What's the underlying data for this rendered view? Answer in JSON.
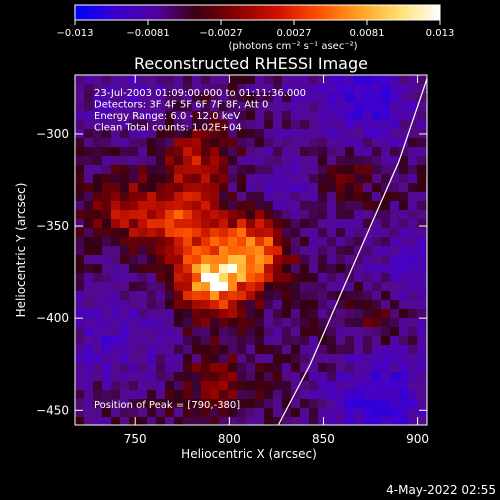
{
  "colorbar": {
    "ticks": [
      "−0.013",
      "−0.0081",
      "−0.0027",
      "0.0027",
      "0.0081",
      "0.013"
    ],
    "units_label": "(photons cm⁻² s⁻¹ asec⁻²)",
    "gradient": [
      "#0000ff",
      "#3a00d0",
      "#5000a0",
      "#3c0010",
      "#8a0000",
      "#d01000",
      "#ff5000",
      "#ffa020",
      "#ffe070",
      "#ffffff"
    ]
  },
  "chart_data": {
    "type": "heatmap",
    "title": "Reconstructed RHESSI Image",
    "xlabel": "Heliocentric X (arcsec)",
    "ylabel": "Heliocentric Y (arcsec)",
    "xlim": [
      718,
      905
    ],
    "ylim": [
      -458,
      -268
    ],
    "xticks": [
      750,
      800,
      850,
      900
    ],
    "xtick_labels": [
      "750",
      "800",
      "850",
      "900"
    ],
    "yticks": [
      -300,
      -350,
      -400,
      -450
    ],
    "ytick_labels": [
      "−300",
      "−350",
      "−400",
      "−450"
    ],
    "zlim": [
      -0.013,
      0.013
    ],
    "sources": [
      {
        "x": 790,
        "y": -380,
        "value": 0.013
      },
      {
        "x": 813,
        "y": -362,
        "value": 0.0115
      },
      {
        "x": 775,
        "y": -347,
        "value": 0.0075
      },
      {
        "x": 783,
        "y": -315,
        "value": 0.006
      },
      {
        "x": 745,
        "y": -342,
        "value": 0.0055
      },
      {
        "x": 792,
        "y": -437,
        "value": 0.004
      },
      {
        "x": 860,
        "y": -320,
        "value": 0.004
      },
      {
        "x": 880,
        "y": -400,
        "value": 0.0035
      }
    ],
    "negative_regions": [
      {
        "x": 870,
        "y": -280,
        "value": -0.006
      },
      {
        "x": 880,
        "y": -445,
        "value": -0.006
      },
      {
        "x": 900,
        "y": -380,
        "value": -0.004
      },
      {
        "x": 835,
        "y": -330,
        "value": -0.003
      },
      {
        "x": 740,
        "y": -410,
        "value": -0.004
      },
      {
        "x": 745,
        "y": -275,
        "value": -0.003
      }
    ],
    "limb_curve": {
      "x": [
        826,
        843,
        860,
        875,
        890,
        905
      ],
      "y": [
        -458,
        -425,
        -385,
        -350,
        -315,
        -270
      ]
    },
    "annotations": [
      "23-Jul-2003 01:09:00.000 to 01:11:36.000",
      "Detectors: 3F 4F 5F 6F 7F 8F, Att 0",
      "Energy Range: 6.0 - 12.0 keV",
      "Clean     Total counts: 1.02E+04"
    ],
    "peak_text": "Position of Peak = [790,-380]",
    "peak": [
      790,
      -380
    ]
  },
  "timestamp": "4-May-2022 02:55"
}
